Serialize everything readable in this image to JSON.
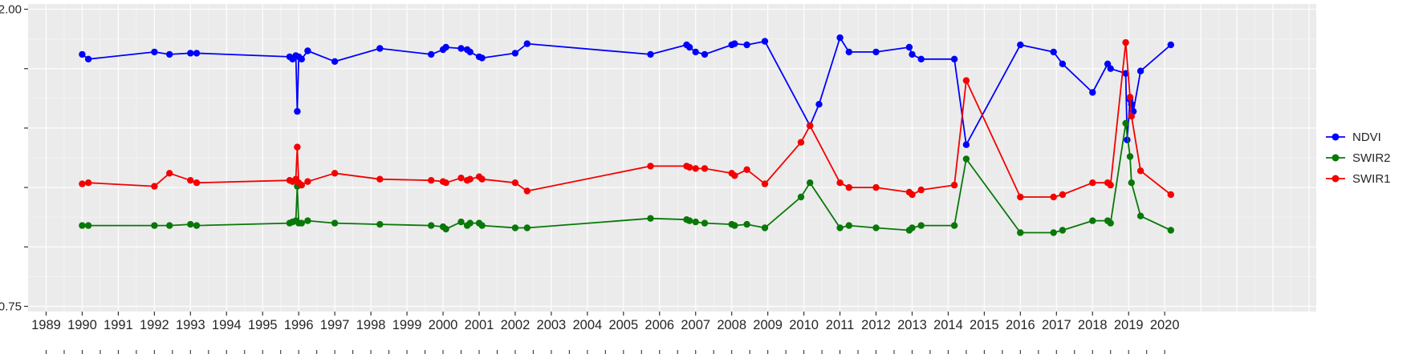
{
  "chart_data": {
    "type": "line",
    "title": "",
    "xlabel": "",
    "ylabel": "",
    "grid": true,
    "legend_position": "right",
    "panel_bg": "#EBEBEB",
    "grid_color": "#FFFFFF",
    "axis_text_color": "#262626",
    "xlim": [
      1988.5,
      2024.2
    ],
    "ylim": [
      0.728,
      2.022
    ],
    "x_axis": {
      "tick_years": [
        1989,
        1990,
        1991,
        1992,
        1993,
        1994,
        1995,
        1996,
        1997,
        1998,
        1999,
        2000,
        2001,
        2002,
        2003,
        2004,
        2005,
        2006,
        2007,
        2008,
        2009,
        2010,
        2011,
        2012,
        2013,
        2014,
        2015,
        2016,
        2017,
        2018,
        2019,
        2020
      ]
    },
    "y_axis": {
      "major_values": [
        0.75,
        1.0,
        1.25,
        1.5,
        1.75,
        2.0
      ],
      "minor_values": [
        0.875,
        1.125,
        1.375,
        1.625,
        1.875
      ],
      "labeled_ticks": [
        {
          "value": 2.0,
          "label": "2.00"
        },
        {
          "value": 0.75,
          "label": "0.75"
        }
      ]
    },
    "legend": {
      "items": [
        {
          "label": "NDVI",
          "color": "#0000FF"
        },
        {
          "label": "SWIR2",
          "color": "#087808"
        },
        {
          "label": "SWIR1",
          "color": "#F40000"
        }
      ]
    },
    "series": [
      {
        "name": "NDVI",
        "color": "#0000FF",
        "points": [
          [
            1990.0,
            1.81
          ],
          [
            1990.17,
            1.79
          ],
          [
            1992.0,
            1.82
          ],
          [
            1992.42,
            1.81
          ],
          [
            1993.0,
            1.815
          ],
          [
            1993.17,
            1.815
          ],
          [
            1995.75,
            1.8
          ],
          [
            1995.83,
            1.79
          ],
          [
            1995.92,
            1.805
          ],
          [
            1995.96,
            1.57
          ],
          [
            1996.0,
            1.8
          ],
          [
            1996.08,
            1.79
          ],
          [
            1996.25,
            1.825
          ],
          [
            1997.0,
            1.78
          ],
          [
            1998.25,
            1.835
          ],
          [
            1999.67,
            1.81
          ],
          [
            2000.0,
            1.83
          ],
          [
            2000.08,
            1.84
          ],
          [
            2000.5,
            1.835
          ],
          [
            2000.67,
            1.83
          ],
          [
            2000.75,
            1.82
          ],
          [
            2001.0,
            1.8
          ],
          [
            2001.08,
            1.795
          ],
          [
            2002.0,
            1.815
          ],
          [
            2002.33,
            1.855
          ],
          [
            2005.75,
            1.81
          ],
          [
            2006.75,
            1.85
          ],
          [
            2006.83,
            1.84
          ],
          [
            2007.0,
            1.82
          ],
          [
            2007.25,
            1.81
          ],
          [
            2008.0,
            1.85
          ],
          [
            2008.08,
            1.855
          ],
          [
            2008.42,
            1.85
          ],
          [
            2008.92,
            1.865
          ],
          [
            2010.17,
            1.51
          ],
          [
            2010.42,
            1.6
          ],
          [
            2011.0,
            1.88
          ],
          [
            2011.25,
            1.82
          ],
          [
            2012.0,
            1.82
          ],
          [
            2012.92,
            1.84
          ],
          [
            2013.0,
            1.81
          ],
          [
            2013.25,
            1.79
          ],
          [
            2014.17,
            1.79
          ],
          [
            2014.5,
            1.43
          ],
          [
            2016.0,
            1.85
          ],
          [
            2016.92,
            1.82
          ],
          [
            2017.17,
            1.77
          ],
          [
            2018.0,
            1.65
          ],
          [
            2018.42,
            1.77
          ],
          [
            2018.5,
            1.75
          ],
          [
            2018.92,
            1.73
          ],
          [
            2018.96,
            1.45
          ],
          [
            2019.04,
            1.62
          ],
          [
            2019.08,
            1.6
          ],
          [
            2019.13,
            1.57
          ],
          [
            2019.33,
            1.74
          ],
          [
            2020.17,
            1.85
          ]
        ]
      },
      {
        "name": "SWIR2",
        "color": "#087808",
        "points": [
          [
            1990.0,
            1.09
          ],
          [
            1990.17,
            1.09
          ],
          [
            1992.0,
            1.09
          ],
          [
            1992.42,
            1.09
          ],
          [
            1993.0,
            1.095
          ],
          [
            1993.17,
            1.09
          ],
          [
            1995.75,
            1.1
          ],
          [
            1995.83,
            1.105
          ],
          [
            1995.92,
            1.11
          ],
          [
            1995.96,
            1.255
          ],
          [
            1996.0,
            1.1
          ],
          [
            1996.08,
            1.1
          ],
          [
            1996.25,
            1.11
          ],
          [
            1997.0,
            1.1
          ],
          [
            1998.25,
            1.095
          ],
          [
            1999.67,
            1.09
          ],
          [
            2000.0,
            1.085
          ],
          [
            2000.08,
            1.075
          ],
          [
            2000.5,
            1.105
          ],
          [
            2000.67,
            1.09
          ],
          [
            2000.75,
            1.1
          ],
          [
            2001.0,
            1.1
          ],
          [
            2001.08,
            1.09
          ],
          [
            2002.0,
            1.08
          ],
          [
            2002.33,
            1.08
          ],
          [
            2005.75,
            1.12
          ],
          [
            2006.75,
            1.115
          ],
          [
            2006.83,
            1.11
          ],
          [
            2007.0,
            1.105
          ],
          [
            2007.25,
            1.1
          ],
          [
            2008.0,
            1.095
          ],
          [
            2008.08,
            1.09
          ],
          [
            2008.42,
            1.095
          ],
          [
            2008.92,
            1.08
          ],
          [
            2009.92,
            1.21
          ],
          [
            2010.17,
            1.27
          ],
          [
            2011.0,
            1.08
          ],
          [
            2011.25,
            1.09
          ],
          [
            2012.0,
            1.08
          ],
          [
            2012.92,
            1.07
          ],
          [
            2013.0,
            1.08
          ],
          [
            2013.25,
            1.09
          ],
          [
            2014.17,
            1.09
          ],
          [
            2014.5,
            1.37
          ],
          [
            2016.0,
            1.06
          ],
          [
            2016.92,
            1.06
          ],
          [
            2017.17,
            1.07
          ],
          [
            2018.0,
            1.11
          ],
          [
            2018.42,
            1.11
          ],
          [
            2018.5,
            1.1
          ],
          [
            2018.92,
            1.52
          ],
          [
            2019.04,
            1.38
          ],
          [
            2019.08,
            1.27
          ],
          [
            2019.33,
            1.13
          ],
          [
            2020.17,
            1.07
          ]
        ]
      },
      {
        "name": "SWIR1",
        "color": "#F40000",
        "points": [
          [
            1990.0,
            1.265
          ],
          [
            1990.17,
            1.27
          ],
          [
            1992.0,
            1.255
          ],
          [
            1992.42,
            1.31
          ],
          [
            1993.0,
            1.28
          ],
          [
            1993.17,
            1.27
          ],
          [
            1995.75,
            1.28
          ],
          [
            1995.83,
            1.275
          ],
          [
            1995.92,
            1.285
          ],
          [
            1995.96,
            1.42
          ],
          [
            1996.0,
            1.27
          ],
          [
            1996.08,
            1.26
          ],
          [
            1996.25,
            1.275
          ],
          [
            1997.0,
            1.31
          ],
          [
            1998.25,
            1.285
          ],
          [
            1999.67,
            1.28
          ],
          [
            2000.0,
            1.275
          ],
          [
            2000.08,
            1.27
          ],
          [
            2000.5,
            1.29
          ],
          [
            2000.67,
            1.28
          ],
          [
            2000.75,
            1.285
          ],
          [
            2001.0,
            1.295
          ],
          [
            2001.08,
            1.285
          ],
          [
            2002.0,
            1.27
          ],
          [
            2002.33,
            1.235
          ],
          [
            2005.75,
            1.34
          ],
          [
            2006.75,
            1.34
          ],
          [
            2006.83,
            1.335
          ],
          [
            2007.0,
            1.33
          ],
          [
            2007.25,
            1.33
          ],
          [
            2008.0,
            1.31
          ],
          [
            2008.08,
            1.3
          ],
          [
            2008.42,
            1.325
          ],
          [
            2008.92,
            1.265
          ],
          [
            2009.92,
            1.44
          ],
          [
            2010.17,
            1.51
          ],
          [
            2011.0,
            1.27
          ],
          [
            2011.25,
            1.25
          ],
          [
            2012.0,
            1.25
          ],
          [
            2012.92,
            1.23
          ],
          [
            2013.0,
            1.22
          ],
          [
            2013.25,
            1.24
          ],
          [
            2014.17,
            1.26
          ],
          [
            2014.5,
            1.7
          ],
          [
            2016.0,
            1.21
          ],
          [
            2016.92,
            1.21
          ],
          [
            2017.17,
            1.22
          ],
          [
            2018.0,
            1.27
          ],
          [
            2018.42,
            1.27
          ],
          [
            2018.5,
            1.26
          ],
          [
            2018.92,
            1.86
          ],
          [
            2019.04,
            1.63
          ],
          [
            2019.08,
            1.55
          ],
          [
            2019.33,
            1.32
          ],
          [
            2020.17,
            1.22
          ]
        ]
      }
    ]
  }
}
